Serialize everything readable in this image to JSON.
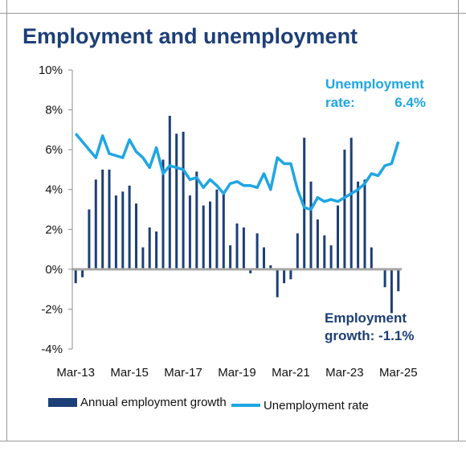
{
  "title": "Employment and unemployment",
  "legend": {
    "bar_label": "Annual employment growth",
    "line_label": "Unemployment rate"
  },
  "annotations": {
    "unemployment_line1": "Unemployment",
    "unemployment_line2_label": "rate:",
    "unemployment_line2_value": "6.4%",
    "employment_line1": "Employment",
    "employment_line2": "growth: -1.1%"
  },
  "colors": {
    "bars": "#1d3f78",
    "line": "#1fa6e3",
    "zero_line": "#a6a6a6",
    "title": "#1d3f78"
  },
  "chart_data": {
    "type": "bar+line",
    "ylim": [
      -4,
      10
    ],
    "y_ticks": [
      -4,
      -2,
      0,
      2,
      4,
      6,
      8,
      10
    ],
    "y_tick_labels": [
      "-4%",
      "-2%",
      "0%",
      "2%",
      "4%",
      "6%",
      "8%",
      "10%"
    ],
    "x_tick_labels": [
      "Mar-13",
      "Mar-15",
      "Mar-17",
      "Mar-19",
      "Mar-21",
      "Mar-23",
      "Mar-25"
    ],
    "x_range": [
      "Mar-13",
      "Jun-25"
    ],
    "grid": false,
    "legend_position": "bottom",
    "series": [
      {
        "name": "Annual employment growth",
        "kind": "bar",
        "values": [
          -0.7,
          -0.4,
          3.0,
          4.5,
          5.0,
          5.0,
          3.7,
          3.9,
          4.2,
          3.3,
          1.1,
          2.1,
          1.9,
          5.5,
          7.7,
          6.8,
          6.9,
          3.7,
          4.9,
          3.2,
          3.4,
          4.0,
          3.9,
          1.2,
          2.3,
          2.1,
          -0.2,
          1.8,
          1.1,
          0.2,
          -1.4,
          -0.7,
          -0.5,
          1.8,
          6.6,
          4.4,
          2.5,
          1.7,
          1.2,
          3.2,
          6.0,
          6.6,
          4.4,
          4.5,
          1.1,
          0.0,
          -0.9,
          -2.2,
          -1.1
        ]
      },
      {
        "name": "Unemployment rate",
        "kind": "line",
        "values": [
          6.8,
          6.4,
          6.0,
          5.6,
          6.7,
          5.8,
          5.7,
          5.6,
          6.5,
          5.9,
          5.6,
          5.1,
          6.1,
          4.8,
          5.2,
          5.1,
          5.0,
          4.5,
          4.6,
          4.1,
          4.5,
          4.2,
          3.8,
          4.3,
          4.4,
          4.2,
          4.2,
          4.1,
          4.8,
          4.0,
          5.6,
          5.3,
          5.3,
          4.0,
          3.1,
          3.0,
          3.6,
          3.4,
          3.5,
          3.4,
          3.6,
          3.8,
          4.0,
          4.3,
          4.8,
          4.7,
          5.2,
          5.3,
          6.4
        ]
      }
    ]
  }
}
